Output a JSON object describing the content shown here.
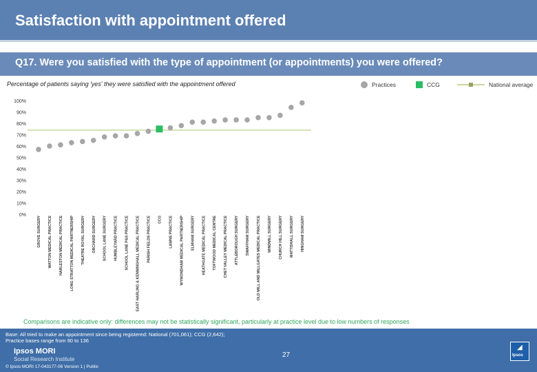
{
  "header": {
    "title": "Satisfaction with appointment offered",
    "question": "Q17. Were you satisfied with the type of appointment (or appointments) you were offered?",
    "subtitle": "Percentage of patients saying 'yes' they were satisfied with the appointment offered"
  },
  "legend": {
    "practices": "Practices",
    "ccg": "CCG",
    "national": "National average"
  },
  "colors": {
    "practice_marker": "#a6a6a6",
    "ccg_marker": "#2bbd63",
    "national_line": "#c7d89a",
    "national_marker": "#9aa06a",
    "header_bg": "#5b80b2",
    "footer_bg": "#3f6ea8",
    "footnote_text": "#2fa55e"
  },
  "chart_data": {
    "type": "scatter",
    "title": "Percentage of patients saying 'yes' they were satisfied with the appointment offered",
    "ylabel": "",
    "xlabel": "",
    "ylim": [
      0,
      100
    ],
    "yticks": [
      0,
      10,
      20,
      30,
      40,
      50,
      60,
      70,
      80,
      90,
      100
    ],
    "ytick_suffix": "%",
    "grid": false,
    "national_average": 74,
    "categories": [
      "GROVE SURGERY",
      "WATTON MEDICAL PRACTICE",
      "HARLESTON MEDICAL PRACTICE",
      "LONG STRATTON MEDICAL PARTNERSHIP",
      "THEATRE ROYAL SURGERY",
      "ORCHARD SURGERY",
      "SCHOOL LANE SURGERY",
      "HUMBLEYARD PRACTICE",
      "SCHOOL LANE P&S PRACTICE",
      "EAST HARLING & KENNINGHALL MEDICAL PRACTICE",
      "PARISH FIELDS PRACTICE",
      "CCG",
      "LAWNS PRACTICE",
      "WYMONDHAM MEDICAL PARTNERSHIP",
      "ELMHAM SURGERY",
      "HEATHGATE MEDICAL PRACTICE",
      "TOFTWOOD MEDICAL CENTRE",
      "CHET VALLEY MEDICAL PRACTICE",
      "ATTLEBOROUGH SURGERY",
      "SWAFFHAM SURGERY",
      "OLD MILL AND MILLGATES MEDICAL PRACTICE",
      "WINDMILL SURGERY",
      "CHURCH HILL SURGERY",
      "MATTISHALL SURGERY",
      "HINGHAM SURGERY"
    ],
    "values": [
      57,
      60,
      61,
      63,
      64,
      65,
      68,
      69,
      69,
      71,
      73,
      75,
      76,
      78,
      81,
      81,
      82,
      83,
      83,
      83,
      85,
      85,
      87,
      94,
      98
    ],
    "ccg_index": 11,
    "series": [
      {
        "name": "Practices",
        "marker": "circle"
      },
      {
        "name": "CCG",
        "marker": "square"
      },
      {
        "name": "National average",
        "marker": "line"
      }
    ]
  },
  "footnote": "Comparisons are indicative only: differences may not be statistically significant, particularly at practice level due to low numbers of responses",
  "footer": {
    "base_line1": "Base: All tried to make an appointment since being registered: National (701,061); CCG (2,642);",
    "base_line2": "Practice bases range from 90 to 136",
    "logo_name": "Ipsos MORI",
    "logo_sub": "Social Research Institute",
    "copyright": "© Ipsos MORI     17-043177-06 Version 1 | Public",
    "page_number": "27",
    "brand_text": "Ipsos",
    "brand_glyph": "◢"
  }
}
